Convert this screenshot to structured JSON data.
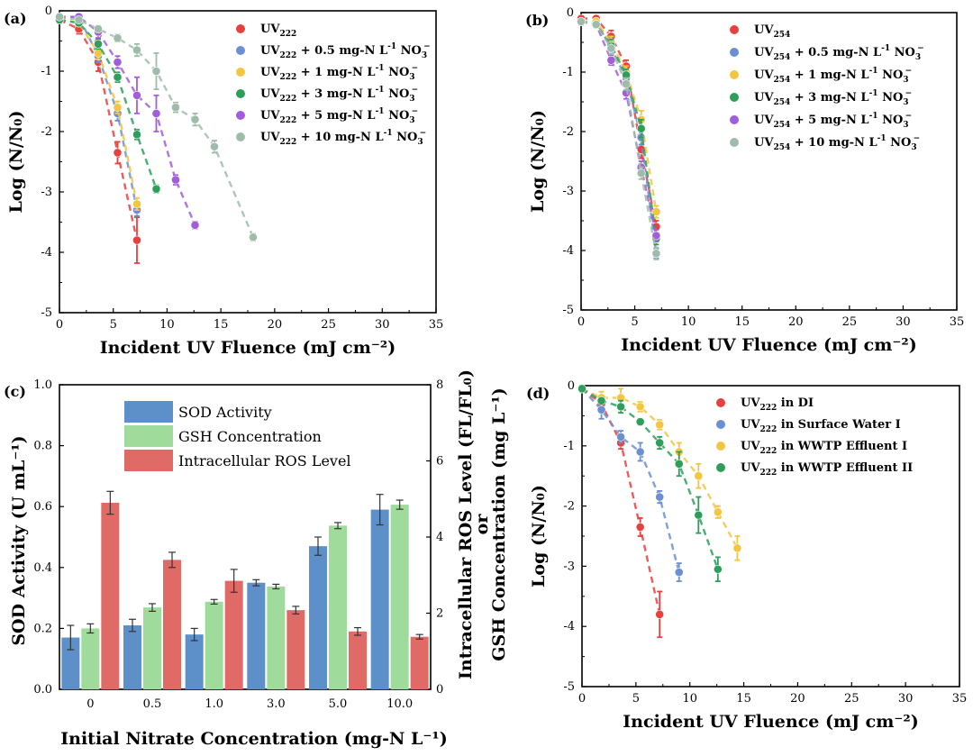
{
  "chart_data": [
    {
      "panel": "(a)",
      "type": "scatter",
      "xlabel": "Incident UV Fluence (mJ cm⁻²)",
      "ylabel": "Log (N/N₀)",
      "xlim": [
        0,
        35
      ],
      "ylim": [
        -5,
        0
      ],
      "xticks": [
        "0",
        "5",
        "10",
        "15",
        "20",
        "25",
        "30",
        "35"
      ],
      "yticks": [
        "0",
        "-1",
        "-2",
        "-3",
        "-4",
        "-5"
      ],
      "legend_position": "top-right",
      "series": [
        {
          "name": "UV222",
          "color": "#e8403f",
          "x": [
            0,
            1.8,
            3.6,
            5.4,
            7.2
          ],
          "y": [
            -0.15,
            -0.3,
            -0.85,
            -2.35,
            -3.8
          ],
          "err": [
            0.05,
            0.08,
            0.15,
            0.18,
            0.38
          ]
        },
        {
          "name": "UV222 + 0.5 mg-N L-1 NO3-",
          "color": "#6b8fd0",
          "x": [
            0,
            1.8,
            3.6,
            5.4,
            7.2
          ],
          "y": [
            -0.12,
            -0.1,
            -0.75,
            -1.7,
            -3.3
          ],
          "err": [
            0.05,
            0.05,
            0.1,
            0.12,
            0.1
          ]
        },
        {
          "name": "UV222 + 1 mg-N L-1 NO3-",
          "color": "#f2c640",
          "x": [
            0,
            1.8,
            3.6,
            5.4,
            7.2
          ],
          "y": [
            -0.14,
            -0.2,
            -0.7,
            -1.6,
            -3.2
          ],
          "err": [
            0.05,
            0.06,
            0.1,
            0.1,
            0.1
          ]
        },
        {
          "name": "UV222 + 3 mg-N L-1 NO3-",
          "color": "#2e9e5a",
          "x": [
            0,
            1.8,
            3.6,
            5.4,
            7.2,
            9.0
          ],
          "y": [
            -0.15,
            -0.2,
            -0.55,
            -1.1,
            -2.05,
            -2.95
          ],
          "err": [
            0.05,
            0.05,
            0.08,
            0.08,
            0.08,
            0.06
          ]
        },
        {
          "name": "UV222 + 5 mg-N L-1 NO3-",
          "color": "#a25ed8",
          "x": [
            0,
            1.8,
            3.6,
            5.4,
            7.2,
            9.0,
            10.8,
            12.6
          ],
          "y": [
            -0.1,
            -0.1,
            -0.35,
            -0.85,
            -1.4,
            -1.7,
            -2.8,
            -3.55
          ],
          "err": [
            0.05,
            0.05,
            0.1,
            0.1,
            0.3,
            0.3,
            0.08,
            0.06
          ]
        },
        {
          "name": "UV222 + 10 mg-N L-1 NO3-",
          "color": "#9fbcaa",
          "x": [
            0,
            1.8,
            3.6,
            5.4,
            7.2,
            9.0,
            10.8,
            12.6,
            14.4,
            18.0
          ],
          "y": [
            -0.1,
            -0.15,
            -0.3,
            -0.45,
            -0.65,
            -1.0,
            -1.6,
            -1.8,
            -2.25,
            -3.75
          ],
          "err": [
            0.05,
            0.05,
            0.05,
            0.06,
            0.1,
            0.3,
            0.08,
            0.1,
            0.1,
            0.06
          ]
        }
      ]
    },
    {
      "panel": "(b)",
      "type": "scatter",
      "xlabel": "Incident UV Fluence (mJ cm⁻²)",
      "ylabel": "Log (N/N₀)",
      "xlim": [
        0,
        35
      ],
      "ylim": [
        -5,
        0
      ],
      "xticks": [
        "0",
        "5",
        "10",
        "15",
        "20",
        "25",
        "30",
        "35"
      ],
      "yticks": [
        "0",
        "-1",
        "-2",
        "-3",
        "-4",
        "-5"
      ],
      "legend_position": "top-right",
      "series": [
        {
          "name": "UV254",
          "color": "#e8403f",
          "x": [
            0,
            1.4,
            2.8,
            4.2,
            5.6,
            7.0
          ],
          "y": [
            -0.1,
            -0.1,
            -0.4,
            -0.9,
            -2.3,
            -3.6
          ],
          "err": [
            0.05,
            0.05,
            0.1,
            0.1,
            0.15,
            0.1
          ]
        },
        {
          "name": "UV254 + 0.5 mg-N L-1 NO3-",
          "color": "#6b8fd0",
          "x": [
            0,
            1.4,
            2.8,
            4.2,
            5.6,
            7.0
          ],
          "y": [
            -0.15,
            -0.15,
            -0.6,
            -1.1,
            -2.1,
            -4.05
          ],
          "err": [
            0.05,
            0.05,
            0.1,
            0.1,
            0.12,
            0.08
          ]
        },
        {
          "name": "UV254 + 1 mg-N L-1 NO3-",
          "color": "#f2c640",
          "x": [
            0,
            1.4,
            2.8,
            4.2,
            5.6,
            7.0
          ],
          "y": [
            -0.15,
            -0.15,
            -0.5,
            -1.0,
            -1.8,
            -3.35
          ],
          "err": [
            0.05,
            0.05,
            0.1,
            0.1,
            0.15,
            0.1
          ]
        },
        {
          "name": "UV254 + 3 mg-N L-1 NO3-",
          "color": "#2e9e5a",
          "x": [
            0,
            1.4,
            2.8,
            4.2,
            5.6,
            7.0
          ],
          "y": [
            -0.15,
            -0.2,
            -0.55,
            -1.05,
            -1.95,
            -3.8
          ],
          "err": [
            0.05,
            0.05,
            0.1,
            0.1,
            0.15,
            0.1
          ]
        },
        {
          "name": "UV254 + 5 mg-N L-1 NO3-",
          "color": "#a25ed8",
          "x": [
            0,
            1.4,
            2.8,
            4.2,
            5.6,
            7.0
          ],
          "y": [
            -0.15,
            -0.2,
            -0.8,
            -1.35,
            -2.6,
            -3.75
          ],
          "err": [
            0.05,
            0.05,
            0.08,
            0.1,
            0.1,
            0.1
          ]
        },
        {
          "name": "UV254 + 10 mg-N L-1 NO3-",
          "color": "#9fbcaa",
          "x": [
            0,
            1.4,
            2.8,
            4.2,
            5.6,
            7.0
          ],
          "y": [
            -0.15,
            -0.2,
            -0.6,
            -1.2,
            -2.7,
            -4.05
          ],
          "err": [
            0.05,
            0.05,
            0.1,
            0.1,
            0.1,
            0.1
          ]
        }
      ]
    },
    {
      "panel": "(c)",
      "type": "bar",
      "xlabel": "Initial Nitrate Concentration (mg-N L⁻¹)",
      "ylabel": "SOD Activity (U mL⁻¹)",
      "ylabel_right_top": "Intracellular ROS Level (FL/FL₀)",
      "ylabel_right_mid": "or",
      "ylabel_right_bottom": "GSH Concentration (mg L⁻¹)",
      "ylim": [
        0,
        1.0
      ],
      "ylim_right": [
        0,
        8
      ],
      "categories": [
        "0",
        "0.5",
        "1.0",
        "3.0",
        "5.0",
        "10.0"
      ],
      "yticks": [
        "0.0",
        "0.2",
        "0.4",
        "0.6",
        "0.8",
        "1.0"
      ],
      "yticks_right": [
        "0",
        "2",
        "4",
        "6",
        "8"
      ],
      "legend_position": "top-left",
      "series": [
        {
          "name": "SOD Activity",
          "color": "#5d8fc9",
          "axis": "left",
          "values": [
            0.17,
            0.21,
            0.18,
            0.35,
            0.47,
            0.59
          ],
          "err": [
            0.04,
            0.02,
            0.02,
            0.01,
            0.03,
            0.05
          ]
        },
        {
          "name": "GSH Concentration",
          "color": "#9fdc9b",
          "axis": "right",
          "values": [
            1.6,
            2.15,
            2.3,
            2.7,
            4.3,
            4.85
          ],
          "err": [
            0.12,
            0.1,
            0.06,
            0.06,
            0.08,
            0.12
          ]
        },
        {
          "name": "Intracellular ROS Level",
          "color": "#e06a66",
          "axis": "right",
          "values": [
            4.9,
            3.4,
            2.85,
            2.08,
            1.52,
            1.38
          ],
          "err": [
            0.3,
            0.2,
            0.3,
            0.1,
            0.1,
            0.06
          ]
        }
      ]
    },
    {
      "panel": "(d)",
      "type": "scatter",
      "xlabel": "Incident UV Fluence (mJ cm⁻²)",
      "ylabel": "Log (N/N₀)",
      "xlim": [
        0,
        35
      ],
      "ylim": [
        -5,
        0
      ],
      "xticks": [
        "0",
        "5",
        "10",
        "15",
        "20",
        "25",
        "30",
        "35"
      ],
      "yticks": [
        "0",
        "-1",
        "-2",
        "-3",
        "-4",
        "-5"
      ],
      "legend_position": "top-right",
      "series": [
        {
          "name": "UV222 in DI",
          "color": "#e8403f",
          "x": [
            0,
            1.8,
            3.6,
            5.4,
            7.2
          ],
          "y": [
            -0.05,
            -0.3,
            -0.95,
            -2.35,
            -3.8
          ],
          "err": [
            0.05,
            0.05,
            0.1,
            0.15,
            0.38
          ]
        },
        {
          "name": "UV222 in Surface Water I",
          "color": "#6b8fd0",
          "x": [
            0,
            1.8,
            3.6,
            5.4,
            7.2,
            9.0
          ],
          "y": [
            -0.05,
            -0.4,
            -0.85,
            -1.1,
            -1.85,
            -3.1
          ],
          "err": [
            0.05,
            0.15,
            0.1,
            0.15,
            0.1,
            0.15
          ]
        },
        {
          "name": "UV222 in WWTP Effluent I",
          "color": "#f2c640",
          "x": [
            0,
            1.8,
            3.6,
            5.4,
            7.2,
            9.0,
            10.8,
            12.6,
            14.4
          ],
          "y": [
            -0.05,
            -0.2,
            -0.2,
            -0.35,
            -0.65,
            -1.1,
            -1.5,
            -2.1,
            -2.7
          ],
          "err": [
            0.05,
            0.1,
            0.15,
            0.08,
            0.08,
            0.15,
            0.2,
            0.1,
            0.2
          ]
        },
        {
          "name": "UV222 in WWTP Effluent II",
          "color": "#2e9e5a",
          "x": [
            0,
            1.8,
            3.6,
            5.4,
            7.2,
            9.0,
            10.8,
            12.6
          ],
          "y": [
            -0.05,
            -0.25,
            -0.35,
            -0.6,
            -0.95,
            -1.3,
            -2.15,
            -3.05
          ],
          "err": [
            0.05,
            0.05,
            0.1,
            0.05,
            0.1,
            0.2,
            0.3,
            0.2
          ]
        }
      ]
    }
  ]
}
